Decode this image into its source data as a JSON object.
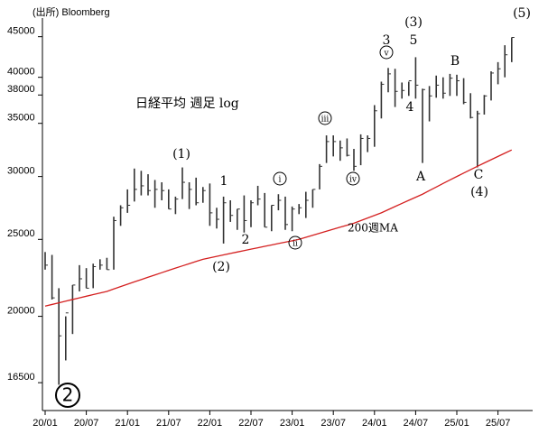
{
  "chart_data": {
    "type": "ohlc",
    "source": "(出所) Bloomberg",
    "title": "日経平均 週足 log",
    "categories": [
      "20/01",
      null,
      null,
      null,
      null,
      null,
      "20/07",
      null,
      null,
      null,
      null,
      null,
      "21/01",
      null,
      null,
      null,
      null,
      null,
      "21/07",
      null,
      null,
      null,
      null,
      null,
      "22/01",
      null,
      null,
      null,
      null,
      null,
      "22/07",
      null,
      null,
      null,
      null,
      null,
      "23/01",
      null,
      null,
      null,
      null,
      null,
      "23/07",
      null,
      null,
      null,
      null,
      null,
      "24/01",
      null,
      null,
      null,
      null,
      null,
      "24/07",
      null,
      null,
      null,
      null,
      null,
      "25/01",
      null,
      null,
      null,
      null,
      null,
      "25/07",
      null,
      null
    ],
    "high": [
      24100,
      23900,
      21700,
      20000,
      21900,
      23200,
      23000,
      23300,
      23600,
      23700,
      26700,
      27600,
      28900,
      30700,
      30500,
      30200,
      29700,
      29500,
      28900,
      28300,
      30800,
      29500,
      29900,
      29100,
      29400,
      27400,
      28300,
      28000,
      27300,
      28400,
      28000,
      29200,
      28600,
      27600,
      28500,
      28300,
      27500,
      27700,
      28700,
      28900,
      31100,
      33800,
      33800,
      33300,
      33500,
      32500,
      33900,
      33800,
      36900,
      39500,
      41100,
      41000,
      39400,
      39500,
      42400,
      38700,
      39000,
      40200,
      40000,
      40400,
      40300,
      39900,
      38200,
      36300,
      38000,
      40700,
      41800,
      43900,
      44900
    ],
    "low": [
      22900,
      21000,
      16400,
      17600,
      19000,
      21500,
      21700,
      21700,
      22900,
      22900,
      22900,
      26000,
      27000,
      27900,
      28400,
      28400,
      27400,
      28000,
      27300,
      26900,
      28100,
      27300,
      27600,
      27800,
      26000,
      25800,
      24700,
      26300,
      25700,
      25500,
      25900,
      27600,
      25900,
      25600,
      27200,
      25700,
      25600,
      26900,
      26600,
      27400,
      28900,
      31200,
      31800,
      31400,
      31800,
      30500,
      31000,
      32200,
      32700,
      35500,
      38300,
      36700,
      37600,
      37900,
      37600,
      31200,
      35200,
      37700,
      37600,
      37900,
      37900,
      37000,
      35500,
      30800,
      35900,
      37400,
      39200,
      40000,
      41800
    ],
    "close": [
      23200,
      21100,
      18900,
      20200,
      21900,
      22300,
      21700,
      23100,
      23200,
      22900,
      26400,
      27400,
      27600,
      28900,
      29200,
      28800,
      28900,
      28800,
      27300,
      28100,
      29500,
      28900,
      27800,
      28800,
      27000,
      26500,
      27800,
      26800,
      27300,
      26400,
      27800,
      28100,
      25900,
      27600,
      28000,
      26100,
      27300,
      27400,
      28000,
      28900,
      30900,
      33200,
      33200,
      32600,
      31900,
      30900,
      33500,
      33500,
      36300,
      39200,
      40400,
      38400,
      38500,
      39600,
      39100,
      38600,
      37900,
      39100,
      38200,
      39900,
      39600,
      37200,
      35600,
      36000,
      37900,
      40500,
      41000,
      42700,
      44900
    ],
    "ma": {
      "name": "200週MA",
      "color": "#d42020",
      "values": [
        20600,
        20700,
        20800,
        20900,
        21000,
        21100,
        21200,
        21300,
        21400,
        21500,
        21650,
        21800,
        21950,
        22100,
        22250,
        22400,
        22550,
        22700,
        22850,
        23000,
        23150,
        23300,
        23450,
        23600,
        23700,
        23800,
        23900,
        24000,
        24100,
        24200,
        24300,
        24400,
        24500,
        24600,
        24700,
        24800,
        24900,
        25000,
        25150,
        25300,
        25450,
        25600,
        25750,
        25900,
        26050,
        26200,
        26400,
        26600,
        26800,
        27000,
        27250,
        27500,
        27750,
        28000,
        28250,
        28500,
        28800,
        29100,
        29400,
        29700,
        30000,
        30300,
        30600,
        30900,
        31200,
        31500,
        31800,
        32100,
        32400
      ]
    },
    "color": "#333333",
    "log_scale": true,
    "ylim": [
      15500,
      47500
    ],
    "yticks": [
      16500,
      20000,
      25000,
      30000,
      35000,
      38000,
      40000,
      45000
    ],
    "annotations": [
      "(1)",
      "1",
      "2",
      "(2)",
      "ⅰ",
      "ⅱ",
      "ⅲ",
      "ⅳ",
      "ⅴ",
      "3",
      "5",
      "(3)",
      "4",
      "A",
      "B",
      "C",
      "(4)",
      "(5)",
      "2"
    ]
  }
}
